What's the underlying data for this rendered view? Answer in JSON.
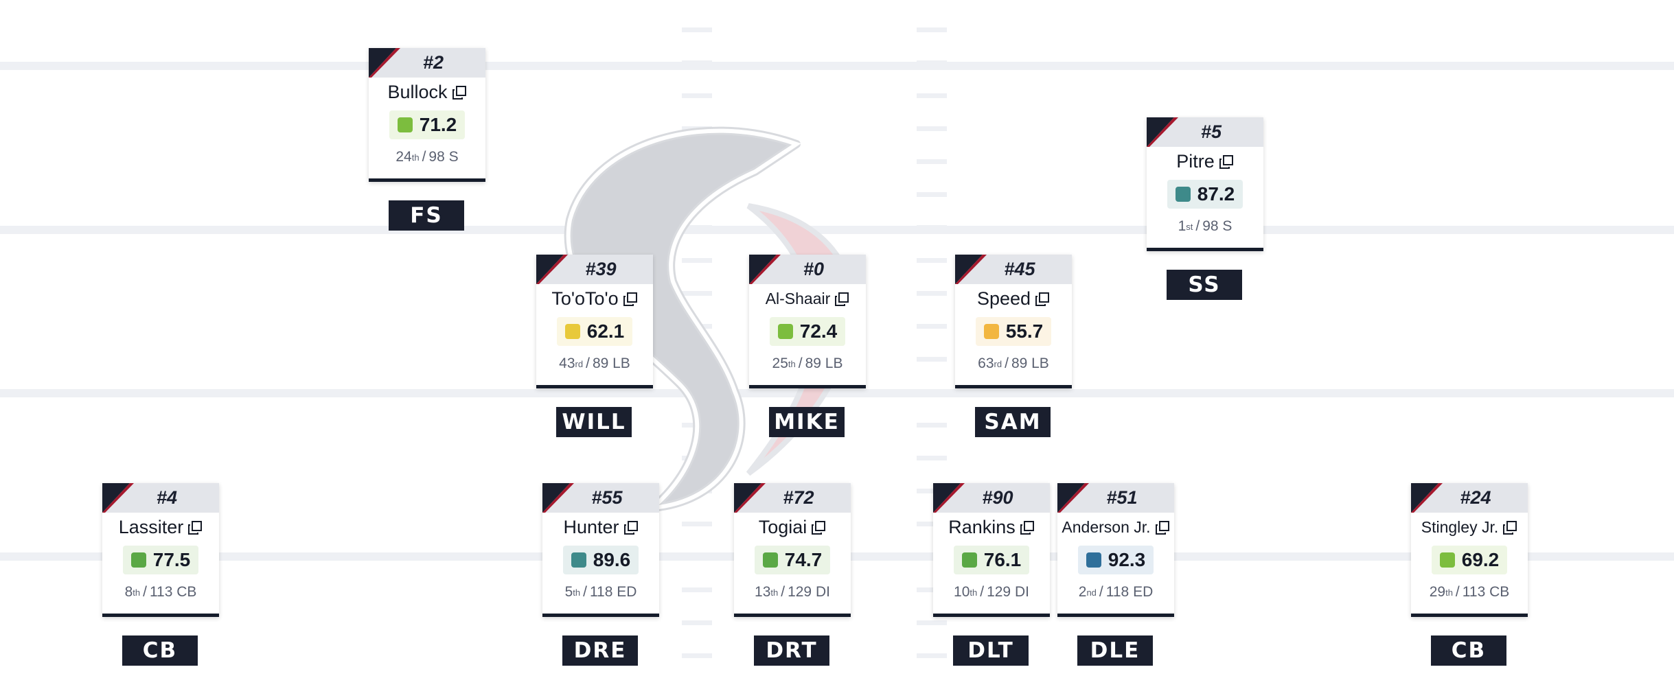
{
  "colors": {
    "navy": "#1a1f2e",
    "red": "#a6192e",
    "grade_elite": "#3e8a8a",
    "grade_elite_blue": "#2f6f9a",
    "grade_high": "#5aa845",
    "grade_good": "#7cbd3e",
    "grade_avg": "#e8c93a",
    "grade_below": "#f2b640"
  },
  "players": [
    {
      "id": "bullock",
      "jersey": "#2",
      "name": "Bullock",
      "grade": "71.2",
      "grade_color": "#7cbd3e",
      "grade_bg": "#eef6e4",
      "rank_num": "24",
      "rank_suffix": "th",
      "rank_total": "98 S",
      "position": "FS"
    },
    {
      "id": "pitre",
      "jersey": "#5",
      "name": "Pitre",
      "grade": "87.2",
      "grade_color": "#3e8a8a",
      "grade_bg": "#e6efef",
      "rank_num": "1",
      "rank_suffix": "st",
      "rank_total": "98 S",
      "position": "SS"
    },
    {
      "id": "tototo",
      "jersey": "#39",
      "name": "To'oTo'o",
      "grade": "62.1",
      "grade_color": "#e8c93a",
      "grade_bg": "#fbf7e4",
      "rank_num": "43",
      "rank_suffix": "rd",
      "rank_total": "89 LB",
      "position": "WILL"
    },
    {
      "id": "alshaair",
      "jersey": "#0",
      "name": "Al-Shaair",
      "grade": "72.4",
      "grade_color": "#7cbd3e",
      "grade_bg": "#eef6e4",
      "rank_num": "25",
      "rank_suffix": "th",
      "rank_total": "89 LB",
      "position": "MIKE"
    },
    {
      "id": "speed",
      "jersey": "#45",
      "name": "Speed",
      "grade": "55.7",
      "grade_color": "#f2b640",
      "grade_bg": "#fcf4e4",
      "rank_num": "63",
      "rank_suffix": "rd",
      "rank_total": "89 LB",
      "position": "SAM"
    },
    {
      "id": "lassiter",
      "jersey": "#4",
      "name": "Lassiter",
      "grade": "77.5",
      "grade_color": "#5aa845",
      "grade_bg": "#ebf4e6",
      "rank_num": "8",
      "rank_suffix": "th",
      "rank_total": "113 CB",
      "position": "CB"
    },
    {
      "id": "hunter",
      "jersey": "#55",
      "name": "Hunter",
      "grade": "89.6",
      "grade_color": "#3e8a8a",
      "grade_bg": "#e6efef",
      "rank_num": "5",
      "rank_suffix": "th",
      "rank_total": "118 ED",
      "position": "DRE"
    },
    {
      "id": "togiai",
      "jersey": "#72",
      "name": "Togiai",
      "grade": "74.7",
      "grade_color": "#5aa845",
      "grade_bg": "#ebf4e6",
      "rank_num": "13",
      "rank_suffix": "th",
      "rank_total": "129 DI",
      "position": "DRT"
    },
    {
      "id": "rankins",
      "jersey": "#90",
      "name": "Rankins",
      "grade": "76.1",
      "grade_color": "#5aa845",
      "grade_bg": "#ebf4e6",
      "rank_num": "10",
      "rank_suffix": "th",
      "rank_total": "129 DI",
      "position": "DLT"
    },
    {
      "id": "anderson",
      "jersey": "#51",
      "name": "Anderson Jr.",
      "grade": "92.3",
      "grade_color": "#2f6f9a",
      "grade_bg": "#e5edf4",
      "rank_num": "2",
      "rank_suffix": "nd",
      "rank_total": "118 ED",
      "position": "DLE"
    },
    {
      "id": "stingley",
      "jersey": "#24",
      "name": "Stingley Jr.",
      "grade": "69.2",
      "grade_color": "#7cbd3e",
      "grade_bg": "#eef6e4",
      "rank_num": "29",
      "rank_suffix": "th",
      "rank_total": "113 CB",
      "position": "CB"
    }
  ]
}
